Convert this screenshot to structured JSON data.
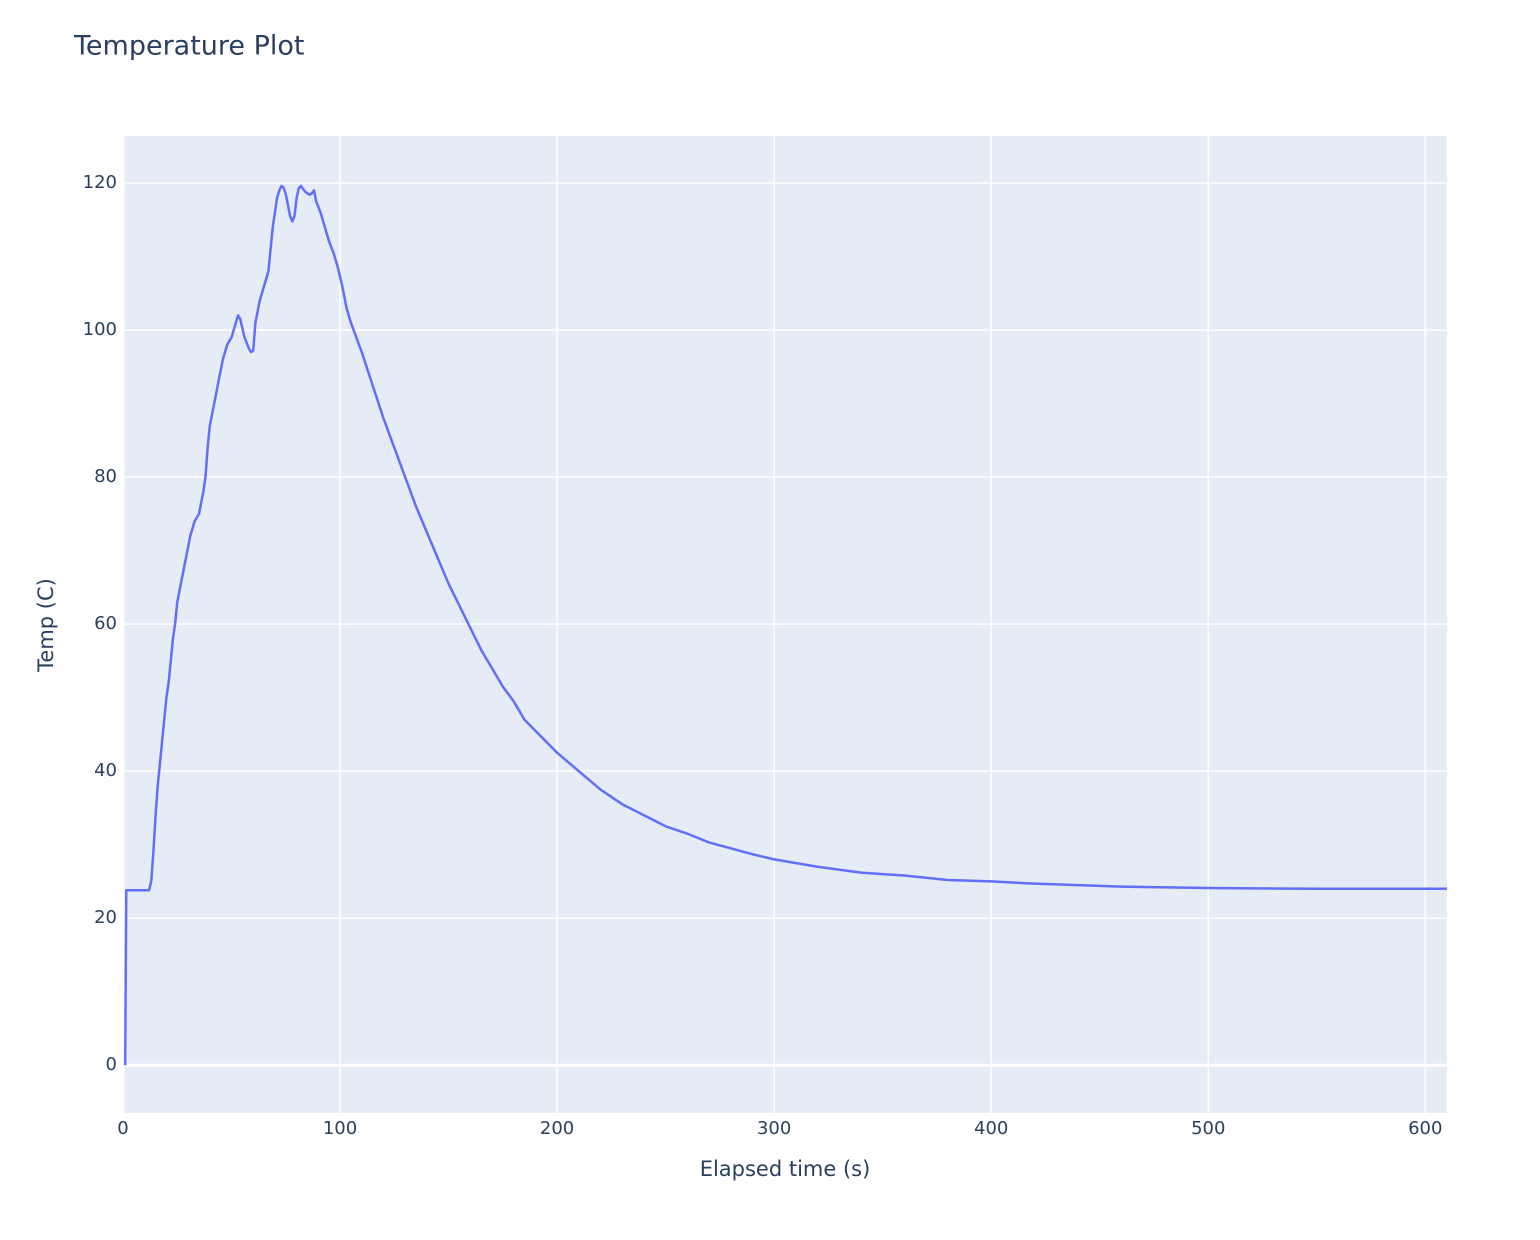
{
  "chart_data": {
    "type": "line",
    "title": "Temperature Plot",
    "x_label": "Elapsed time (s)",
    "y_label": "Temp (C)",
    "x": [
      1,
      1.5,
      12,
      13,
      14,
      15,
      16,
      17,
      18,
      19,
      20,
      21,
      22,
      23,
      24,
      25,
      27,
      29,
      31,
      33,
      35,
      37,
      38,
      39,
      40,
      42,
      44,
      46,
      48,
      50,
      52,
      53,
      54,
      56,
      58,
      59,
      60,
      61,
      63,
      65,
      67,
      68,
      69,
      70,
      71,
      72,
      73,
      74,
      75,
      76,
      77,
      78,
      79,
      80,
      81,
      82,
      83,
      84,
      86,
      87,
      88,
      89,
      91,
      93,
      95,
      97,
      99,
      101,
      103,
      105,
      110,
      115,
      120,
      125,
      130,
      135,
      140,
      145,
      150,
      155,
      160,
      165,
      170,
      175,
      180,
      185,
      190,
      195,
      200,
      210,
      220,
      230,
      240,
      250,
      260,
      270,
      280,
      290,
      300,
      320,
      340,
      360,
      380,
      400,
      420,
      440,
      460,
      500,
      550,
      610
    ],
    "values": [
      0,
      23.8,
      23.8,
      25,
      29,
      34,
      38,
      41,
      44,
      47,
      50,
      52,
      55,
      58,
      60,
      63,
      66,
      69,
      72,
      74,
      75,
      78,
      80,
      84,
      87,
      90,
      93,
      96,
      98,
      99,
      101,
      102,
      101.5,
      99,
      97.5,
      97,
      97.2,
      101,
      104,
      106,
      108,
      111,
      114,
      116,
      118,
      119,
      119.6,
      119.4,
      118.5,
      117,
      115.5,
      114.8,
      115.5,
      118,
      119.3,
      119.6,
      119.2,
      118.8,
      118.4,
      118.6,
      119,
      117.5,
      116,
      114,
      112,
      110.5,
      108.5,
      106,
      103,
      101,
      97,
      92.5,
      88,
      84,
      80,
      76,
      72.5,
      69,
      65.5,
      62.5,
      59.5,
      56.5,
      54,
      51.5,
      49.5,
      47,
      45.5,
      44,
      42.5,
      40,
      37.5,
      35.5,
      34,
      32.5,
      31.5,
      30.3,
      29.5,
      28.7,
      28,
      27,
      26.2,
      25.8,
      25.2,
      25,
      24.7,
      24.5,
      24.3,
      24.1,
      24,
      24
    ],
    "color": "#636efa",
    "xlim": [
      0,
      610
    ],
    "ylim": [
      -6.5,
      126.4
    ],
    "xticks": [
      0,
      100,
      200,
      300,
      400,
      500,
      600
    ],
    "yticks": [
      0,
      20,
      40,
      60,
      80,
      100,
      120
    ],
    "grid": true
  }
}
